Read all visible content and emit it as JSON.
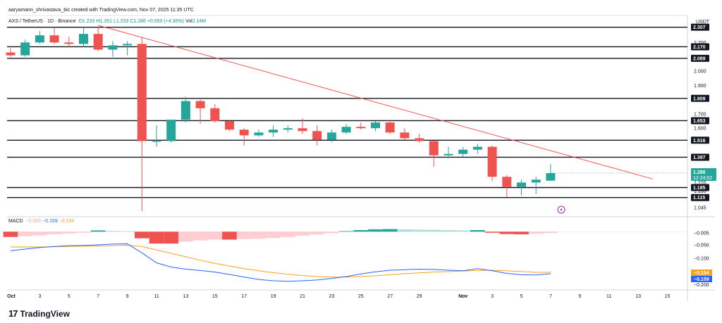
{
  "header": {
    "credit": "aaryamann_shrivastava_bic created with TradingView.com, Nov 07, 2025 11:35 UTC",
    "symbol": "AXS / TetherUS · 1D · Binance",
    "open": "O1.233",
    "high": "H1.351",
    "low": "L1.233",
    "close": "C1.286",
    "change": "+0.053 (+4.30%)",
    "volume_label": "Vol",
    "volume": "2.14M",
    "currency": "USDT"
  },
  "macd_legend": {
    "label": "MACD",
    "hist": "−0.005",
    "macd": "−0.159",
    "signal": "−0.154"
  },
  "brand": {
    "name": "TradingView",
    "logo_icon": "tradingview-logo-icon"
  },
  "colors": {
    "up": "#26a69a",
    "down": "#ef5350",
    "trendline": "#ef5350",
    "macd_line": "#2962ff",
    "signal_line": "#f7a21b",
    "hist_up_strong": "#26a69a",
    "hist_up_weak": "#b2dfdb",
    "hist_down_strong": "#ef5350",
    "hist_down_weak": "#ffcdd2"
  },
  "chart_data": {
    "type": "candlestick",
    "price_axis": {
      "ylim": [
        1.02,
        2.32
      ],
      "ticks": [
        "1.045",
        "1.160",
        "1.220",
        "1.600",
        "1.700",
        "1.900",
        "2.000",
        "2.200"
      ]
    },
    "horizontal_levels": [
      "2.307",
      "2.170",
      "2.089",
      "1.809",
      "1.653",
      "1.516",
      "1.397",
      "1.185",
      "1.115"
    ],
    "last_price": {
      "value": "1.286",
      "countdown": "12:24:02"
    },
    "x_ticks": [
      "Oct",
      "3",
      "5",
      "7",
      "9",
      "11",
      "13",
      "15",
      "17",
      "19",
      "21",
      "23",
      "25",
      "27",
      "29",
      "Nov",
      "3",
      "5",
      "7",
      "9",
      "11",
      "13",
      "15"
    ],
    "x_tick_day_index": [
      0,
      2,
      4,
      6,
      8,
      10,
      12,
      14,
      16,
      18,
      20,
      22,
      24,
      26,
      28,
      31,
      33,
      35,
      37,
      39,
      41,
      43,
      45
    ],
    "candles": [
      {
        "o": 2.13,
        "h": 2.16,
        "l": 2.1,
        "c": 2.11
      },
      {
        "o": 2.11,
        "h": 2.22,
        "l": 2.1,
        "c": 2.2
      },
      {
        "o": 2.2,
        "h": 2.28,
        "l": 2.19,
        "c": 2.25
      },
      {
        "o": 2.25,
        "h": 2.3,
        "l": 2.19,
        "c": 2.2
      },
      {
        "o": 2.2,
        "h": 2.24,
        "l": 2.17,
        "c": 2.19
      },
      {
        "o": 2.19,
        "h": 2.3,
        "l": 2.17,
        "c": 2.26
      },
      {
        "o": 2.26,
        "h": 2.31,
        "l": 2.14,
        "c": 2.15
      },
      {
        "o": 2.15,
        "h": 2.21,
        "l": 2.1,
        "c": 2.18
      },
      {
        "o": 2.18,
        "h": 2.21,
        "l": 2.11,
        "c": 2.19
      },
      {
        "o": 2.19,
        "h": 2.24,
        "l": 1.02,
        "c": 1.51
      },
      {
        "o": 1.51,
        "h": 1.62,
        "l": 1.47,
        "c": 1.51
      },
      {
        "o": 1.51,
        "h": 1.66,
        "l": 1.5,
        "c": 1.66
      },
      {
        "o": 1.66,
        "h": 1.82,
        "l": 1.64,
        "c": 1.79
      },
      {
        "o": 1.79,
        "h": 1.81,
        "l": 1.63,
        "c": 1.74
      },
      {
        "o": 1.74,
        "h": 1.77,
        "l": 1.64,
        "c": 1.65
      },
      {
        "o": 1.65,
        "h": 1.66,
        "l": 1.58,
        "c": 1.59
      },
      {
        "o": 1.59,
        "h": 1.6,
        "l": 1.48,
        "c": 1.55
      },
      {
        "o": 1.55,
        "h": 1.59,
        "l": 1.54,
        "c": 1.57
      },
      {
        "o": 1.57,
        "h": 1.62,
        "l": 1.54,
        "c": 1.59
      },
      {
        "o": 1.59,
        "h": 1.62,
        "l": 1.57,
        "c": 1.6
      },
      {
        "o": 1.6,
        "h": 1.67,
        "l": 1.56,
        "c": 1.58
      },
      {
        "o": 1.58,
        "h": 1.62,
        "l": 1.48,
        "c": 1.52
      },
      {
        "o": 1.52,
        "h": 1.59,
        "l": 1.5,
        "c": 1.57
      },
      {
        "o": 1.57,
        "h": 1.63,
        "l": 1.56,
        "c": 1.61
      },
      {
        "o": 1.61,
        "h": 1.64,
        "l": 1.59,
        "c": 1.6
      },
      {
        "o": 1.6,
        "h": 1.65,
        "l": 1.58,
        "c": 1.64
      },
      {
        "o": 1.64,
        "h": 1.66,
        "l": 1.56,
        "c": 1.57
      },
      {
        "o": 1.57,
        "h": 1.6,
        "l": 1.52,
        "c": 1.53
      },
      {
        "o": 1.53,
        "h": 1.56,
        "l": 1.5,
        "c": 1.51
      },
      {
        "o": 1.51,
        "h": 1.51,
        "l": 1.33,
        "c": 1.41
      },
      {
        "o": 1.41,
        "h": 1.47,
        "l": 1.39,
        "c": 1.42
      },
      {
        "o": 1.42,
        "h": 1.47,
        "l": 1.4,
        "c": 1.45
      },
      {
        "o": 1.45,
        "h": 1.49,
        "l": 1.42,
        "c": 1.47
      },
      {
        "o": 1.47,
        "h": 1.48,
        "l": 1.23,
        "c": 1.26
      },
      {
        "o": 1.26,
        "h": 1.27,
        "l": 1.12,
        "c": 1.19
      },
      {
        "o": 1.19,
        "h": 1.24,
        "l": 1.13,
        "c": 1.22
      },
      {
        "o": 1.22,
        "h": 1.26,
        "l": 1.14,
        "c": 1.24
      },
      {
        "o": 1.233,
        "h": 1.351,
        "l": 1.233,
        "c": 1.286
      }
    ],
    "trendline": {
      "start": {
        "day": 6,
        "price": 2.32
      },
      "end": {
        "day": 44,
        "price": 1.245
      }
    },
    "macd": {
      "ylim": [
        -0.21,
        0.03
      ],
      "ticks": [
        "−0.005",
        "−0.050",
        "−0.100",
        "−0.200"
      ],
      "histogram": [
        -0.02,
        -0.017,
        -0.014,
        -0.01,
        -0.007,
        -0.004,
        0.005,
        0.003,
        0.002,
        -0.025,
        -0.045,
        -0.045,
        -0.038,
        -0.033,
        -0.03,
        -0.03,
        -0.028,
        -0.027,
        -0.024,
        -0.02,
        -0.015,
        -0.011,
        -0.006,
        0.002,
        0.006,
        0.009,
        0.01,
        0.009,
        0.008,
        0.007,
        0.006,
        0.005,
        0.006,
        -0.004,
        -0.009,
        -0.01,
        -0.008,
        -0.005
      ],
      "macd_line": [
        -0.072,
        -0.066,
        -0.06,
        -0.056,
        -0.053,
        -0.052,
        -0.05,
        -0.047,
        -0.046,
        -0.08,
        -0.118,
        -0.134,
        -0.142,
        -0.147,
        -0.153,
        -0.162,
        -0.172,
        -0.181,
        -0.186,
        -0.188,
        -0.186,
        -0.183,
        -0.177,
        -0.17,
        -0.16,
        -0.152,
        -0.146,
        -0.144,
        -0.142,
        -0.143,
        -0.146,
        -0.148,
        -0.14,
        -0.148,
        -0.158,
        -0.163,
        -0.164,
        -0.159
      ],
      "signal_line": [
        -0.058,
        -0.058,
        -0.058,
        -0.057,
        -0.056,
        -0.055,
        -0.054,
        -0.053,
        -0.051,
        -0.056,
        -0.069,
        -0.082,
        -0.095,
        -0.108,
        -0.12,
        -0.13,
        -0.14,
        -0.148,
        -0.155,
        -0.161,
        -0.166,
        -0.17,
        -0.172,
        -0.172,
        -0.17,
        -0.167,
        -0.163,
        -0.159,
        -0.156,
        -0.153,
        -0.151,
        -0.149,
        -0.147,
        -0.146,
        -0.148,
        -0.151,
        -0.154,
        -0.154
      ]
    }
  }
}
